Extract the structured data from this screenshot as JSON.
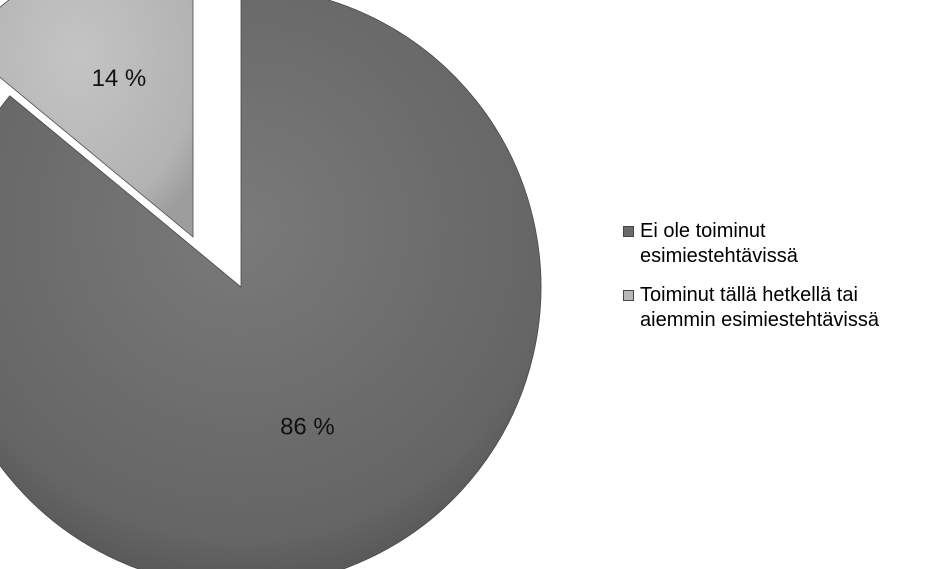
{
  "chart_data": {
    "type": "pie",
    "title": "",
    "slices": [
      {
        "label": "Ei ole toiminut esimiestehtävissä",
        "value": 86,
        "display": "86 %",
        "color": "#6b6b6b"
      },
      {
        "label": "Toiminut tällä hetkellä tai aiemmin esimiestehtävissä",
        "value": 14,
        "display": "14 %",
        "color": "#b8b8b8"
      }
    ],
    "legend": {
      "position": "right",
      "entries": [
        {
          "line1": "Ei ole toiminut",
          "line2": "esimiestehtävissä",
          "color": "#6b6b6b"
        },
        {
          "line1": "Toiminut tällä hetkellä tai",
          "line2": "aiemmin esimiestehtävissä",
          "color": "#b8b8b8"
        }
      ]
    }
  }
}
